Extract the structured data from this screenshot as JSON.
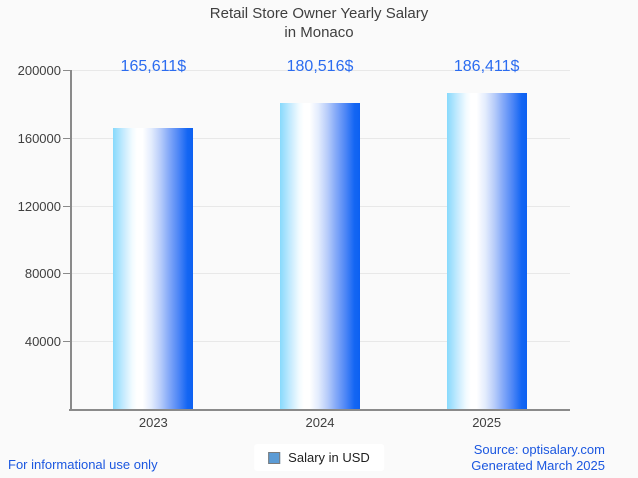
{
  "title": {
    "line1": "Retail Store Owner Yearly Salary",
    "line2": "in Monaco"
  },
  "legend": {
    "label": "Salary in USD",
    "swatch_color": "#5b9bd5",
    "swatch_border": "#7b7b7b"
  },
  "footer": {
    "left": "For informational use only",
    "source": "Source: optisalary.com",
    "generated": "Generated March 2025"
  },
  "colors": {
    "title_text": "#3f3f3f",
    "axis_text": "#3f3f3f",
    "value_label_text": "#2b6cf0",
    "footer_text": "#1b57e0",
    "axis_line": "#8a8a8a",
    "gridline": "#e8e8e8",
    "bar_gradient_stops": [
      "#87d9fc 0%",
      "#c9ecfe 14%",
      "#f2fbff 24%",
      "#ffffff 30%",
      "#ffffff 37%",
      "#e3ecfd 48%",
      "#b9cdfa 59%",
      "#84a9f8 70%",
      "#4d86f6 82%",
      "#1466f3 93%",
      "#0c60f1 100%"
    ]
  },
  "chart_data": {
    "type": "bar",
    "title": "Retail Store Owner Yearly Salary in Monaco",
    "categories": [
      "2023",
      "2024",
      "2025"
    ],
    "values": [
      165611,
      180516,
      186411
    ],
    "value_labels": [
      "165,611$",
      "180,516$",
      "186,411$"
    ],
    "series_name": "Salary in USD",
    "xlabel": "",
    "ylabel": "",
    "ylim": [
      0,
      200000
    ],
    "yticks": [
      40000,
      80000,
      120000,
      160000,
      200000
    ],
    "ytick_labels": [
      "40000",
      "80000",
      "120000",
      "160000",
      "200000"
    ],
    "grid": "horizontal",
    "legend_position": "bottom"
  }
}
